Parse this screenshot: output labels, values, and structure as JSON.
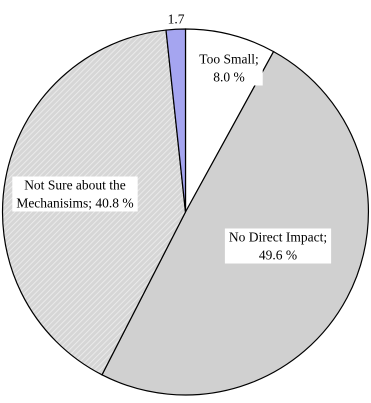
{
  "chart_data": {
    "type": "pie",
    "slices": [
      {
        "label_lines": [
          "Too Small;",
          "8.0 %"
        ],
        "value": 8.0,
        "color": "#ffffff",
        "pattern": "none"
      },
      {
        "label_lines": [
          "No Direct Impact;",
          "49.6 %"
        ],
        "value": 49.6,
        "color": "#d0d0d0",
        "pattern": "none"
      },
      {
        "label_lines": [
          "Not Sure about the",
          "Mechanisims; 40.8 %"
        ],
        "value": 40.8,
        "color": "#d6d6d6",
        "pattern": "diagonal-hatch"
      },
      {
        "label_lines": [
          "1.7"
        ],
        "value": 1.7,
        "color": "#a5a5f0",
        "pattern": "none"
      }
    ],
    "start_angle_deg": 0,
    "direction": "clockwise",
    "outline_color": "#000000"
  }
}
